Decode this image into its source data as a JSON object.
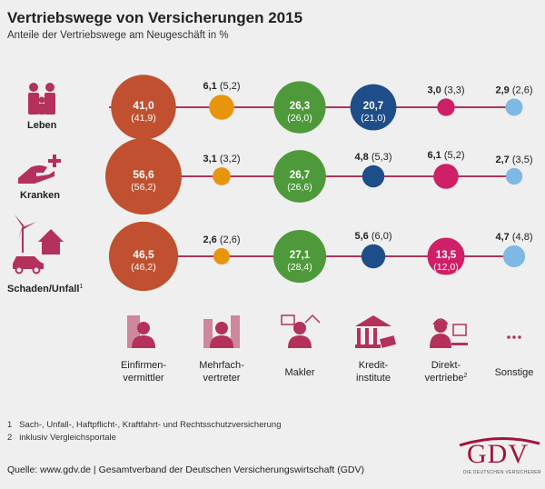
{
  "title": "Vertriebswege von Versicherungen 2015",
  "subtitle": "Anteile der Vertriebswege am Neugeschäft in %",
  "chart_data": {
    "type": "bubble",
    "rows": [
      {
        "name": "Leben",
        "values": [
          41.0,
          6.1,
          26.3,
          20.7,
          3.0,
          2.9
        ],
        "labels": [
          "41,0",
          "6,1",
          "26,3",
          "20,7",
          "3,0",
          "2,9"
        ],
        "prev_labels": [
          "(41,9)",
          "(5,2)",
          "(26,0)",
          "(21,0)",
          "(3,3)",
          "(2,6)"
        ]
      },
      {
        "name": "Kranken",
        "values": [
          56.6,
          3.1,
          26.7,
          4.8,
          6.1,
          2.7
        ],
        "labels": [
          "56,6",
          "3,1",
          "26,7",
          "4,8",
          "6,1",
          "2,7"
        ],
        "prev_labels": [
          "(56,2)",
          "(3,2)",
          "(26,6)",
          "(5,3)",
          "(5,2)",
          "(3,5)"
        ]
      },
      {
        "name": "Schaden/Unfall",
        "footnote_mark": "1",
        "values": [
          46.5,
          2.6,
          27.1,
          5.6,
          13.5,
          4.7
        ],
        "labels": [
          "46,5",
          "2,6",
          "27,1",
          "5,6",
          "13,5",
          "4,7"
        ],
        "prev_labels": [
          "(46,2)",
          "(2,6)",
          "(28,4)",
          "(6,0)",
          "(12,0)",
          "(4,8)"
        ]
      }
    ],
    "channels": [
      {
        "line1": "Einfirmen-",
        "line2": "vermittler",
        "sup": "",
        "color": "#c0502f",
        "icon": "person-building-icon"
      },
      {
        "line1": "Mehrfach-",
        "line2": "vertreter",
        "sup": "",
        "color": "#e8950e",
        "icon": "person-buildings-icon"
      },
      {
        "line1": "Makler",
        "line2": "",
        "sup": "",
        "color": "#4e9a3a",
        "icon": "person-car-house-icon"
      },
      {
        "line1": "Kredit-",
        "line2": "institute",
        "sup": "",
        "color": "#1e4e8a",
        "icon": "bank-icon"
      },
      {
        "line1": "Direkt-",
        "line2": "vertriebe",
        "sup": "2",
        "color": "#cf1f66",
        "icon": "headset-computer-icon"
      },
      {
        "line1": "Sonstige",
        "line2": "",
        "sup": "",
        "color": "#7eb8e4",
        "icon": "dots-icon"
      }
    ],
    "connector_color": "#a8385a"
  },
  "footnotes": [
    {
      "num": "1",
      "text": "Sach-, Unfall-, Haftpflicht-, Kraftfahrt- und Rechtsschutzversicherung"
    },
    {
      "num": "2",
      "text": "inklusiv Vergleichsportale"
    }
  ],
  "source": "Quelle: www.gdv.de | Gesamtverband der Deutschen Versicherungswirtschaft (GDV)",
  "logo": {
    "text": "GDV",
    "subtext": "DIE DEUTSCHEN VERSICHERER",
    "color": "#a2143b"
  }
}
